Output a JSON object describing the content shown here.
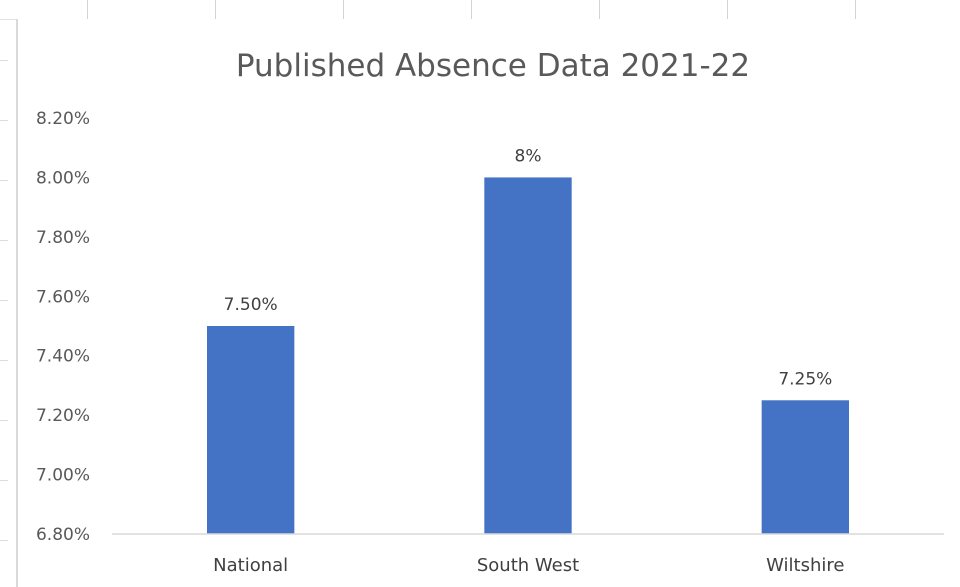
{
  "chart_data": {
    "type": "bar",
    "title": "Published Absence Data 2021-22",
    "categories": [
      "National",
      "South West",
      "Wiltshire"
    ],
    "values": [
      7.5,
      8.0,
      7.25
    ],
    "data_labels": [
      "7.50%",
      "8%",
      "7.25%"
    ],
    "ylim": [
      6.8,
      8.2
    ],
    "y_ticks": [
      6.8,
      7.0,
      7.2,
      7.4,
      7.6,
      7.8,
      8.0,
      8.2
    ],
    "y_tick_labels": [
      "6.80%",
      "7.00%",
      "7.20%",
      "7.40%",
      "7.60%",
      "7.80%",
      "8.00%",
      "8.20%"
    ],
    "xlabel": "",
    "ylabel": "",
    "grid": false,
    "legend": "none",
    "bar_color": "#4472C4"
  }
}
